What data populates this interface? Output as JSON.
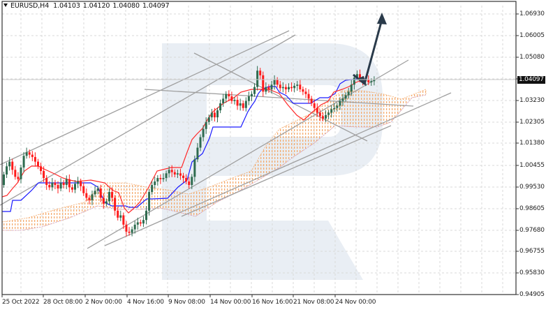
{
  "header": {
    "symbol": "EURUSD,H4",
    "open": "1.04103",
    "high": "1.04120",
    "low": "1.04080",
    "close": "1.04097"
  },
  "current_price": "1.04097",
  "colors": {
    "bull_candle": "#2e6b4f",
    "bear_candle": "#ff1a1a",
    "tenkan_sen": "#ff2a2a",
    "kijun_sen": "#1a1aff",
    "cloud": "#f4a460",
    "cloud_edge": "#c9a0dc",
    "trendline": "#a0a0a0",
    "forecast_arrow": "#2a3a4a",
    "watermark": "#e9eef4",
    "grid": "#d9d9d9"
  },
  "y_axis": {
    "labels": [
      "1.06930",
      "1.06005",
      "1.05080",
      "1.04097",
      "1.03230",
      "1.02305",
      "1.01380",
      "1.00455",
      "0.99530",
      "0.98605",
      "0.97680",
      "0.96755",
      "0.95830",
      "0.94905"
    ]
  },
  "x_axis": {
    "labels": [
      "25 Oct 2022",
      "28 Oct 08:00",
      "2 Nov 00:00",
      "4 Nov 16:00",
      "9 Nov 08:00",
      "14 Nov 00:00",
      "16 Nov 16:00",
      "21 Nov 08:00",
      "24 Nov 00:00"
    ]
  },
  "chart_data": {
    "type": "candlestick",
    "title": "EURUSD,H4",
    "instrument": "EURUSD",
    "timeframe": "H4",
    "ohlc_header": {
      "open": 1.04103,
      "high": 1.0412,
      "low": 1.0408,
      "close": 1.04097
    },
    "xlabel": "",
    "ylabel": "",
    "ylim": [
      0.94905,
      1.0693
    ],
    "y_ticks": [
      1.0693,
      1.06005,
      1.0508,
      1.0323,
      1.02305,
      1.0138,
      1.00455,
      0.9953,
      0.98605,
      0.9768,
      0.96755,
      0.9583,
      0.94905
    ],
    "x_ticks": [
      "25 Oct 2022",
      "28 Oct 08:00",
      "2 Nov 00:00",
      "4 Nov 16:00",
      "9 Nov 08:00",
      "14 Nov 00:00",
      "16 Nov 16:00",
      "21 Nov 08:00",
      "24 Nov 00:00"
    ],
    "grid": true,
    "current_price_marker": 1.04097,
    "indicators": [
      "Ichimoku Kinko Hyo (Tenkan-sen red, Kijun-sen blue, Kumo cloud orange)"
    ],
    "annotations": [
      "Ascending channel trendlines (grey)",
      "Descending channel trendlines (grey)",
      "Forecast arrow: down-tick to ~1.0390 then up toward ~1.0700"
    ],
    "series_close_approx": {
      "x": [
        "25 Oct",
        "26 Oct",
        "27 Oct",
        "28 Oct",
        "31 Oct",
        "1 Nov",
        "2 Nov",
        "3 Nov",
        "4 Nov",
        "7 Nov",
        "8 Nov",
        "9 Nov",
        "10 Nov",
        "11 Nov",
        "14 Nov",
        "15 Nov",
        "16 Nov",
        "17 Nov",
        "18 Nov",
        "21 Nov",
        "22 Nov",
        "23 Nov",
        "24 Nov",
        "25 Nov"
      ],
      "values": [
        0.996,
        1.0,
        1.008,
        0.9965,
        0.988,
        0.988,
        0.982,
        0.975,
        0.993,
        1.001,
        1.0075,
        1.002,
        1.021,
        1.035,
        1.033,
        1.035,
        1.038,
        1.036,
        1.033,
        1.025,
        1.03,
        1.035,
        1.042,
        1.041
      ]
    }
  }
}
